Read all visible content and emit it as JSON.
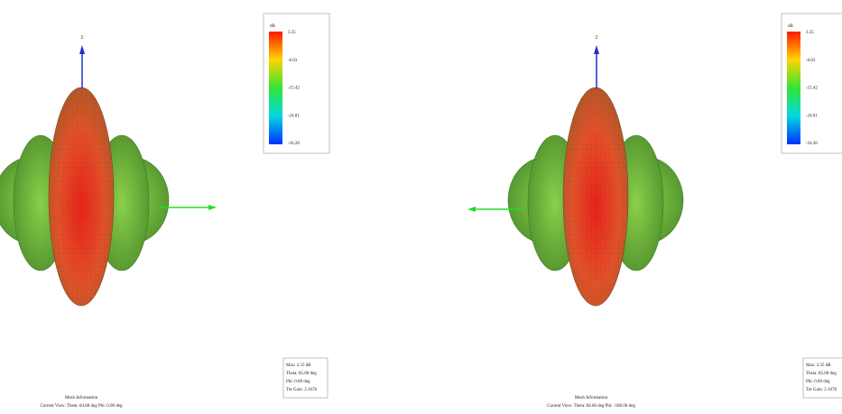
{
  "panels": [
    {
      "axis_label": "Z",
      "legend_title": "dB",
      "legend_labels": [
        "3.35",
        "-6.03",
        "-15.42",
        "-24.81",
        "-34.20"
      ],
      "info_lines": [
        "Max: 3.35 dB",
        "Theta: 85.00 deg",
        "Phi: 0.00 deg",
        "Tot Gain: 2.1678"
      ],
      "mesh_title": "Mesh Information",
      "view_text": "Current View: Theta: 84.68 deg   Phi: 0.00 deg"
    },
    {
      "axis_label": "Z",
      "legend_title": "dB",
      "legend_labels": [
        "3.35",
        "-6.03",
        "-15.42",
        "-24.81",
        "-34.20"
      ],
      "info_lines": [
        "Max: 3.35 dB",
        "Theta: 85.00 deg",
        "Phi: 0.00 deg",
        "Tot Gain: 2.1678"
      ],
      "mesh_title": "Mesh Information",
      "view_text": "Current View: Theta: 84.68 deg   Phi: -180.00 deg"
    }
  ]
}
